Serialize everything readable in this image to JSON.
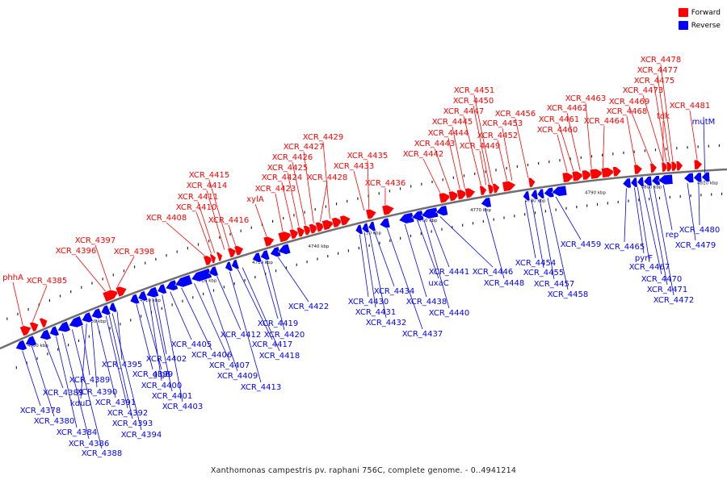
{
  "legend": {
    "forward_label": "Forward",
    "reverse_label": "Reverse",
    "forward_color": "#ff0000",
    "reverse_color": "#0000ff"
  },
  "caption": "Xanthomonas campestris pv. raphani 756C, complete genome. - 0..4941214",
  "colors": {
    "forward": "#ff0000",
    "reverse": "#0000ff",
    "axis": "#6f6f6f",
    "tick": "#000000"
  },
  "ticks": [
    "4690 kbp",
    "4700 kbp",
    "4710 kbp",
    "4720 kbp",
    "4730 kbp",
    "4740 kbp",
    "4750 kbp",
    "4760 kbp",
    "4770 kbp",
    "4780 kbp",
    "4790 kbp",
    "4800 kbp",
    "4810 kbp"
  ],
  "forward_labels": [
    "phhA",
    "XCR_4385",
    "XCR_4396",
    "XCR_4397",
    "XCR_4398",
    "XCR_4408",
    "XCR_4410",
    "XCR_4411",
    "XCR_4414",
    "XCR_4415",
    "XCR_4416",
    "xylA",
    "XCR_4423",
    "XCR_4424",
    "XCR_4425",
    "XCR_4426",
    "XCR_4427",
    "XCR_4428",
    "XCR_4429",
    "XCR_4433",
    "XCR_4435",
    "XCR_4436",
    "XCR_4442",
    "XCR_4443",
    "XCR_4444",
    "XCR_4445",
    "XCR_4447",
    "XCR_4449",
    "XCR_4450",
    "XCR_4451",
    "XCR_4452",
    "XCR_4453",
    "XCR_4456",
    "XCR_4460",
    "XCR_4461",
    "XCR_4462",
    "XCR_4463",
    "XCR_4464",
    "XCR_4468",
    "XCR_4469",
    "XCR_4473",
    "XCR_4475",
    "XCR_4477",
    "XCR_4478",
    "tdk",
    "XCR_4481"
  ],
  "reverse_labels": [
    "mutM",
    "XCR_4378",
    "XCR_4380",
    "XCR_4383",
    "XCR_4384",
    "XCR_4386",
    "XCR_4388",
    "XCR_4389",
    "kduD",
    "XCR_4390",
    "XCR_4391",
    "XCR_4392",
    "XCR_4393",
    "XCR_4394",
    "XCR_4395",
    "XCR_4399",
    "glgB",
    "XCR_4400",
    "XCR_4401",
    "XCR_4402",
    "XCR_4403",
    "XCR_4405",
    "XCR_4406",
    "XCR_4407",
    "XCR_4409",
    "XCR_4412",
    "XCR_4413",
    "XCR_4417",
    "XCR_4418",
    "XCR_4419",
    "XCR_4420",
    "XCR_4422",
    "XCR_4430",
    "XCR_4431",
    "XCR_4432",
    "XCR_4434",
    "XCR_4437",
    "XCR_4438",
    "uxaC",
    "XCR_4440",
    "XCR_4441",
    "XCR_4446",
    "XCR_4448",
    "XCR_4454",
    "XCR_4455",
    "XCR_4457",
    "XCR_4458",
    "XCR_4459",
    "XCR_4465",
    "pyrF",
    "XCR_4467",
    "XCR_4470",
    "XCR_4471",
    "XCR_4472",
    "rep",
    "XCR_4479",
    "XCR_4480"
  ]
}
